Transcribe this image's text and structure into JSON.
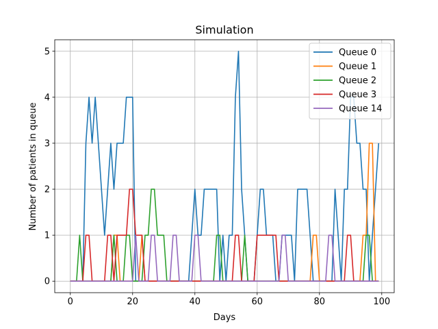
{
  "chart_data": {
    "type": "line",
    "title": "Simulation",
    "xlabel": "Days",
    "ylabel": "Number of patients in queue",
    "xlim": [
      -5,
      104
    ],
    "ylim": [
      -0.25,
      5.25
    ],
    "xticks": [
      0,
      20,
      40,
      60,
      80,
      100
    ],
    "yticks": [
      0,
      1,
      2,
      3,
      4,
      5
    ],
    "grid": true,
    "legend_position": "top-right",
    "x": [
      0,
      1,
      2,
      3,
      4,
      5,
      6,
      7,
      8,
      9,
      10,
      11,
      12,
      13,
      14,
      15,
      16,
      17,
      18,
      19,
      20,
      21,
      22,
      23,
      24,
      25,
      26,
      27,
      28,
      29,
      30,
      31,
      32,
      33,
      34,
      35,
      36,
      37,
      38,
      39,
      40,
      41,
      42,
      43,
      44,
      45,
      46,
      47,
      48,
      49,
      50,
      51,
      52,
      53,
      54,
      55,
      56,
      57,
      58,
      59,
      60,
      61,
      62,
      63,
      64,
      65,
      66,
      67,
      68,
      69,
      70,
      71,
      72,
      73,
      74,
      75,
      76,
      77,
      78,
      79,
      80,
      81,
      82,
      83,
      84,
      85,
      86,
      87,
      88,
      89,
      90,
      91,
      92,
      93,
      94,
      95,
      96,
      97,
      98,
      99
    ],
    "series": [
      {
        "name": "Queue 0",
        "color": "#1f77b4",
        "values": [
          0,
          0,
          0,
          0,
          0,
          3,
          4,
          3,
          4,
          3,
          2,
          1,
          2,
          3,
          2,
          3,
          3,
          3,
          4,
          4,
          4,
          0,
          0,
          0,
          0,
          0,
          0,
          0,
          0,
          0,
          0,
          0,
          0,
          0,
          0,
          0,
          0,
          0,
          0,
          1,
          2,
          1,
          1,
          2,
          2,
          2,
          2,
          2,
          0,
          1,
          0,
          1,
          1,
          4,
          5,
          2,
          1,
          0,
          0,
          0,
          1,
          2,
          2,
          1,
          1,
          1,
          0,
          0,
          1,
          1,
          1,
          1,
          0,
          2,
          2,
          2,
          2,
          1,
          0,
          0,
          0,
          0,
          0,
          0,
          0,
          2,
          1,
          0,
          2,
          2,
          4,
          4,
          3,
          3,
          2,
          2,
          0,
          1,
          2,
          3
        ]
      },
      {
        "name": "Queue 1",
        "color": "#ff7f0e",
        "values": [
          0,
          0,
          0,
          0,
          0,
          0,
          0,
          0,
          0,
          0,
          0,
          0,
          0,
          0,
          1,
          1,
          0,
          0,
          0,
          0,
          0,
          0,
          0,
          1,
          0,
          0,
          0,
          0,
          0,
          0,
          0,
          0,
          0,
          0,
          0,
          0,
          0,
          0,
          0,
          0,
          0,
          0,
          0,
          0,
          0,
          0,
          0,
          0,
          0,
          0,
          0,
          0,
          0,
          0,
          0,
          0,
          0,
          0,
          0,
          0,
          0,
          0,
          0,
          0,
          0,
          0,
          0,
          0,
          0,
          0,
          0,
          0,
          0,
          0,
          0,
          0,
          0,
          0,
          1,
          1,
          0,
          0,
          0,
          0,
          0,
          0,
          0,
          0,
          0,
          0,
          0,
          0,
          0,
          0,
          1,
          1,
          3,
          3,
          0,
          0
        ]
      },
      {
        "name": "Queue 2",
        "color": "#2ca02c",
        "values": [
          0,
          0,
          0,
          1,
          0,
          0,
          0,
          0,
          0,
          0,
          0,
          0,
          0,
          0,
          1,
          0,
          0,
          0,
          1,
          1,
          0,
          0,
          0,
          0,
          1,
          1,
          2,
          2,
          1,
          1,
          1,
          0,
          0,
          0,
          0,
          0,
          0,
          0,
          0,
          0,
          0,
          0,
          0,
          0,
          0,
          0,
          0,
          1,
          1,
          0,
          0,
          0,
          0,
          0,
          0,
          0,
          1,
          0,
          0,
          0,
          0,
          0,
          0,
          0,
          0,
          0,
          0,
          0,
          0,
          0,
          0,
          0,
          0,
          0,
          0,
          0,
          0,
          0,
          0,
          0,
          0,
          0,
          0,
          0,
          0,
          0,
          0,
          0,
          0,
          0,
          0,
          0,
          0,
          0,
          0,
          1,
          1,
          0,
          0,
          0
        ]
      },
      {
        "name": "Queue 3",
        "color": "#d62728",
        "values": [
          0,
          0,
          0,
          0,
          0,
          1,
          1,
          0,
          0,
          0,
          0,
          0,
          1,
          1,
          0,
          1,
          1,
          1,
          1,
          2,
          2,
          1,
          1,
          1,
          0,
          0,
          0,
          0,
          0,
          0,
          0,
          0,
          0,
          0,
          0,
          0,
          0,
          0,
          0,
          0,
          0,
          0,
          0,
          0,
          0,
          0,
          0,
          0,
          0,
          0,
          0,
          0,
          0,
          1,
          1,
          0,
          0,
          0,
          0,
          0,
          1,
          1,
          1,
          1,
          1,
          1,
          1,
          0,
          0,
          0,
          0,
          0,
          0,
          0,
          0,
          0,
          0,
          0,
          0,
          0,
          0,
          0,
          0,
          0,
          0,
          0,
          0,
          0,
          0,
          1,
          1,
          0,
          0,
          0,
          0,
          0,
          0,
          0,
          0,
          0
        ]
      },
      {
        "name": "Queue 14",
        "color": "#9467bd",
        "values": [
          0,
          0,
          0,
          0,
          0,
          0,
          0,
          0,
          0,
          0,
          0,
          0,
          0,
          0,
          0,
          0,
          0,
          0,
          0,
          0,
          0,
          1,
          0,
          0,
          0,
          0,
          1,
          1,
          0,
          0,
          0,
          0,
          0,
          1,
          1,
          0,
          0,
          0,
          0,
          0,
          1,
          1,
          0,
          0,
          0,
          0,
          0,
          0,
          0,
          0,
          0,
          0,
          0,
          0,
          0,
          0,
          0,
          0,
          0,
          0,
          0,
          0,
          0,
          0,
          0,
          0,
          0,
          0,
          1,
          1,
          0,
          0,
          0,
          0,
          0,
          0,
          0,
          0,
          0,
          0,
          0,
          0,
          0,
          1,
          1,
          0,
          0,
          0,
          0,
          0,
          0,
          0,
          0,
          0,
          0,
          0,
          0,
          0,
          0,
          0
        ]
      }
    ]
  }
}
